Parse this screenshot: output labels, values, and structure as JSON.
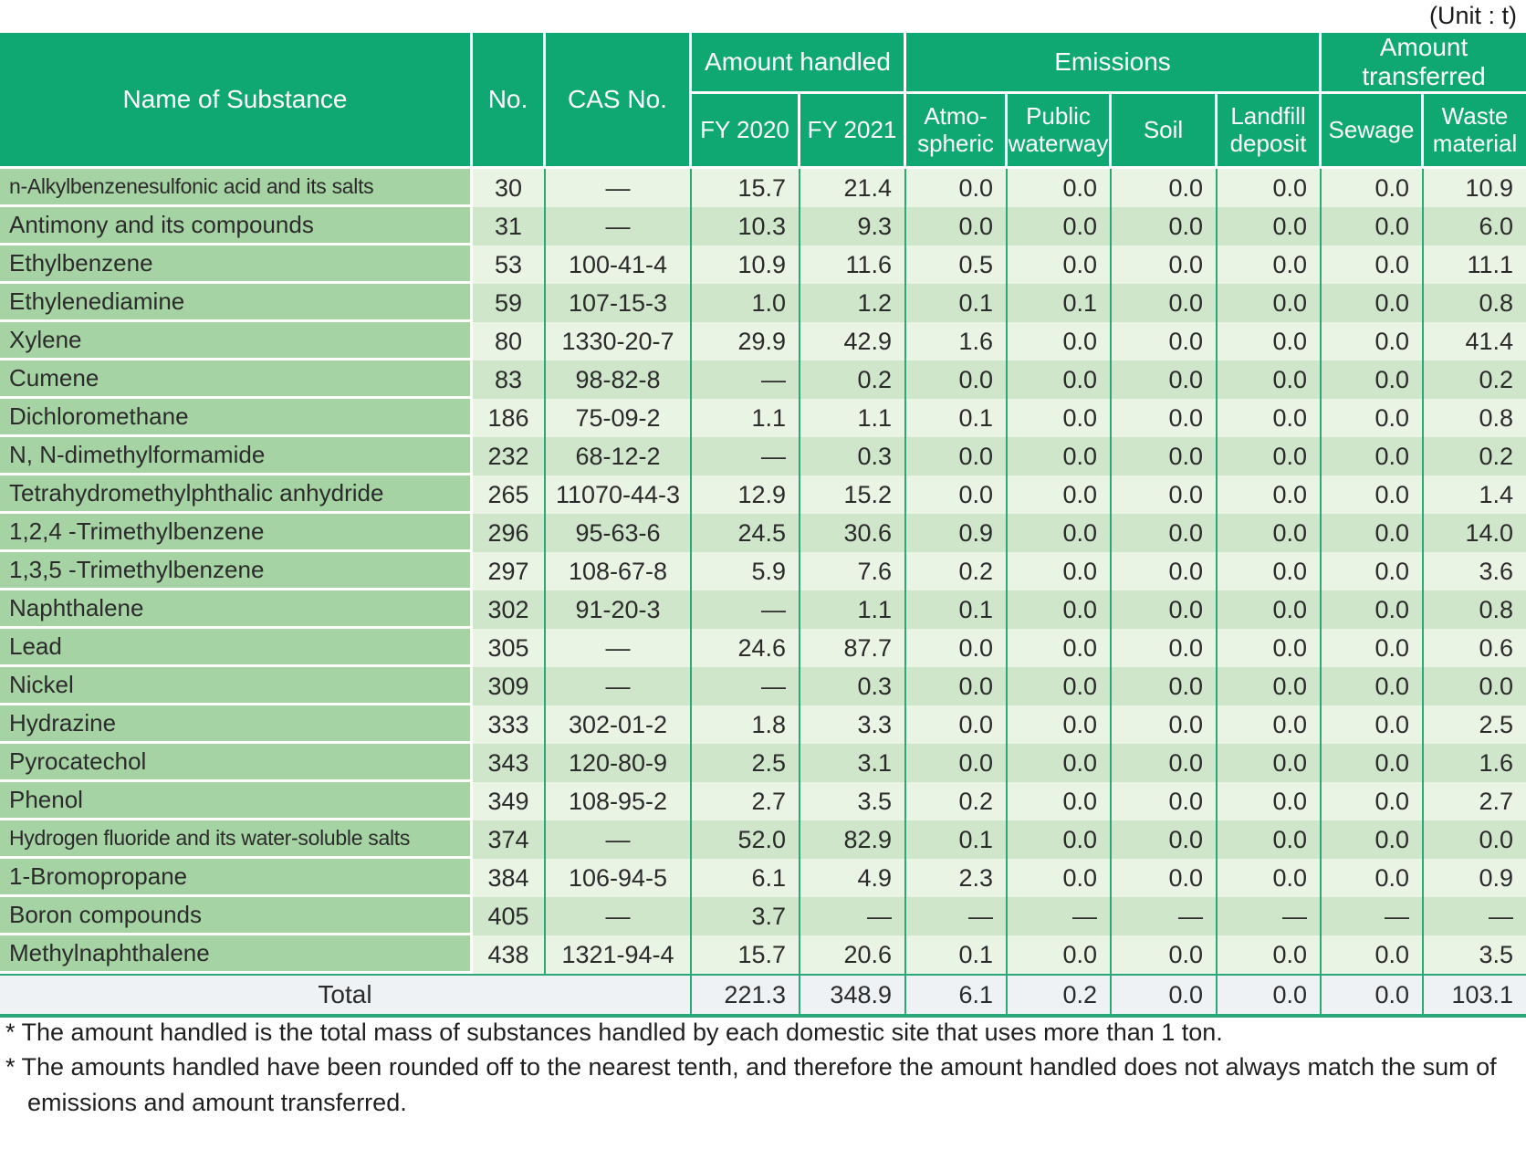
{
  "unit_label": "(Unit : t)",
  "colors": {
    "header_green": "#0fa872",
    "name_column_green": "#a6d3a3",
    "row_light_green": "#eaf4e5",
    "row_dark_green": "#cfe6ca",
    "grid_green": "#2aa877",
    "total_row_bg": "#eef2f5"
  },
  "table": {
    "headers": {
      "name": "Name of Substance",
      "no": "No.",
      "cas": "CAS No.",
      "amount_handled": "Amount handled",
      "emissions": "Emissions",
      "amount_transferred": "Amount transferred",
      "fy2020": "FY 2020",
      "fy2021": "FY 2021",
      "atmospheric": "Atmo-\nspheric",
      "public_waterway": "Public\nwaterway",
      "soil": "Soil",
      "landfill_deposit": "Landfill\ndeposit",
      "sewage": "Sewage",
      "waste_material": "Waste\nmaterial"
    },
    "rows": [
      {
        "name": "n-Alkylbenzenesulfonic acid and its salts",
        "no": "30",
        "cas": "—",
        "fy2020": "15.7",
        "fy2021": "21.4",
        "atmospheric": "0.0",
        "public_waterway": "0.0",
        "soil": "0.0",
        "landfill_deposit": "0.0",
        "sewage": "0.0",
        "waste_material": "10.9"
      },
      {
        "name": "Antimony and its compounds",
        "no": "31",
        "cas": "—",
        "fy2020": "10.3",
        "fy2021": "9.3",
        "atmospheric": "0.0",
        "public_waterway": "0.0",
        "soil": "0.0",
        "landfill_deposit": "0.0",
        "sewage": "0.0",
        "waste_material": "6.0"
      },
      {
        "name": "Ethylbenzene",
        "no": "53",
        "cas": "100-41-4",
        "fy2020": "10.9",
        "fy2021": "11.6",
        "atmospheric": "0.5",
        "public_waterway": "0.0",
        "soil": "0.0",
        "landfill_deposit": "0.0",
        "sewage": "0.0",
        "waste_material": "11.1"
      },
      {
        "name": "Ethylenediamine",
        "no": "59",
        "cas": "107-15-3",
        "fy2020": "1.0",
        "fy2021": "1.2",
        "atmospheric": "0.1",
        "public_waterway": "0.1",
        "soil": "0.0",
        "landfill_deposit": "0.0",
        "sewage": "0.0",
        "waste_material": "0.8"
      },
      {
        "name": "Xylene",
        "no": "80",
        "cas": "1330-20-7",
        "fy2020": "29.9",
        "fy2021": "42.9",
        "atmospheric": "1.6",
        "public_waterway": "0.0",
        "soil": "0.0",
        "landfill_deposit": "0.0",
        "sewage": "0.0",
        "waste_material": "41.4"
      },
      {
        "name": "Cumene",
        "no": "83",
        "cas": "98-82-8",
        "fy2020": "—",
        "fy2021": "0.2",
        "atmospheric": "0.0",
        "public_waterway": "0.0",
        "soil": "0.0",
        "landfill_deposit": "0.0",
        "sewage": "0.0",
        "waste_material": "0.2"
      },
      {
        "name": "Dichloromethane",
        "no": "186",
        "cas": "75-09-2",
        "fy2020": "1.1",
        "fy2021": "1.1",
        "atmospheric": "0.1",
        "public_waterway": "0.0",
        "soil": "0.0",
        "landfill_deposit": "0.0",
        "sewage": "0.0",
        "waste_material": "0.8"
      },
      {
        "name": "N, N-dimethylformamide",
        "no": "232",
        "cas": "68-12-2",
        "fy2020": "—",
        "fy2021": "0.3",
        "atmospheric": "0.0",
        "public_waterway": "0.0",
        "soil": "0.0",
        "landfill_deposit": "0.0",
        "sewage": "0.0",
        "waste_material": "0.2"
      },
      {
        "name": "Tetrahydromethylphthalic anhydride",
        "no": "265",
        "cas": "11070-44-3",
        "fy2020": "12.9",
        "fy2021": "15.2",
        "atmospheric": "0.0",
        "public_waterway": "0.0",
        "soil": "0.0",
        "landfill_deposit": "0.0",
        "sewage": "0.0",
        "waste_material": "1.4"
      },
      {
        "name": "1,2,4 -Trimethylbenzene",
        "no": "296",
        "cas": "95-63-6",
        "fy2020": "24.5",
        "fy2021": "30.6",
        "atmospheric": "0.9",
        "public_waterway": "0.0",
        "soil": "0.0",
        "landfill_deposit": "0.0",
        "sewage": "0.0",
        "waste_material": "14.0"
      },
      {
        "name": "1,3,5 -Trimethylbenzene",
        "no": "297",
        "cas": "108-67-8",
        "fy2020": "5.9",
        "fy2021": "7.6",
        "atmospheric": "0.2",
        "public_waterway": "0.0",
        "soil": "0.0",
        "landfill_deposit": "0.0",
        "sewage": "0.0",
        "waste_material": "3.6"
      },
      {
        "name": "Naphthalene",
        "no": "302",
        "cas": "91-20-3",
        "fy2020": "—",
        "fy2021": "1.1",
        "atmospheric": "0.1",
        "public_waterway": "0.0",
        "soil": "0.0",
        "landfill_deposit": "0.0",
        "sewage": "0.0",
        "waste_material": "0.8"
      },
      {
        "name": "Lead",
        "no": "305",
        "cas": "—",
        "fy2020": "24.6",
        "fy2021": "87.7",
        "atmospheric": "0.0",
        "public_waterway": "0.0",
        "soil": "0.0",
        "landfill_deposit": "0.0",
        "sewage": "0.0",
        "waste_material": "0.6"
      },
      {
        "name": "Nickel",
        "no": "309",
        "cas": "—",
        "fy2020": "—",
        "fy2021": "0.3",
        "atmospheric": "0.0",
        "public_waterway": "0.0",
        "soil": "0.0",
        "landfill_deposit": "0.0",
        "sewage": "0.0",
        "waste_material": "0.0"
      },
      {
        "name": "Hydrazine",
        "no": "333",
        "cas": "302-01-2",
        "fy2020": "1.8",
        "fy2021": "3.3",
        "atmospheric": "0.0",
        "public_waterway": "0.0",
        "soil": "0.0",
        "landfill_deposit": "0.0",
        "sewage": "0.0",
        "waste_material": "2.5"
      },
      {
        "name": "Pyrocatechol",
        "no": "343",
        "cas": "120-80-9",
        "fy2020": "2.5",
        "fy2021": "3.1",
        "atmospheric": "0.0",
        "public_waterway": "0.0",
        "soil": "0.0",
        "landfill_deposit": "0.0",
        "sewage": "0.0",
        "waste_material": "1.6"
      },
      {
        "name": "Phenol",
        "no": "349",
        "cas": "108-95-2",
        "fy2020": "2.7",
        "fy2021": "3.5",
        "atmospheric": "0.2",
        "public_waterway": "0.0",
        "soil": "0.0",
        "landfill_deposit": "0.0",
        "sewage": "0.0",
        "waste_material": "2.7"
      },
      {
        "name": "Hydrogen fluoride and its water-soluble salts",
        "no": "374",
        "cas": "—",
        "fy2020": "52.0",
        "fy2021": "82.9",
        "atmospheric": "0.1",
        "public_waterway": "0.0",
        "soil": "0.0",
        "landfill_deposit": "0.0",
        "sewage": "0.0",
        "waste_material": "0.0"
      },
      {
        "name": "1-Bromopropane",
        "no": "384",
        "cas": "106-94-5",
        "fy2020": "6.1",
        "fy2021": "4.9",
        "atmospheric": "2.3",
        "public_waterway": "0.0",
        "soil": "0.0",
        "landfill_deposit": "0.0",
        "sewage": "0.0",
        "waste_material": "0.9"
      },
      {
        "name": "Boron compounds",
        "no": "405",
        "cas": "—",
        "fy2020": "3.7",
        "fy2021": "—",
        "atmospheric": "—",
        "public_waterway": "—",
        "soil": "—",
        "landfill_deposit": "—",
        "sewage": "—",
        "waste_material": "—"
      },
      {
        "name": "Methylnaphthalene",
        "no": "438",
        "cas": "1321-94-4",
        "fy2020": "15.7",
        "fy2021": "20.6",
        "atmospheric": "0.1",
        "public_waterway": "0.0",
        "soil": "0.0",
        "landfill_deposit": "0.0",
        "sewage": "0.0",
        "waste_material": "3.5"
      }
    ],
    "total": {
      "label": "Total",
      "fy2020": "221.3",
      "fy2021": "348.9",
      "atmospheric": "6.1",
      "public_waterway": "0.2",
      "soil": "0.0",
      "landfill_deposit": "0.0",
      "sewage": "0.0",
      "waste_material": "103.1"
    }
  },
  "footnotes": [
    "* The amount handled is the total mass of substances handled by each domestic site that uses more than 1 ton.",
    "* The amounts handled have been rounded off to the nearest tenth, and therefore the amount handled does not always match the sum of emissions and amount transferred."
  ]
}
